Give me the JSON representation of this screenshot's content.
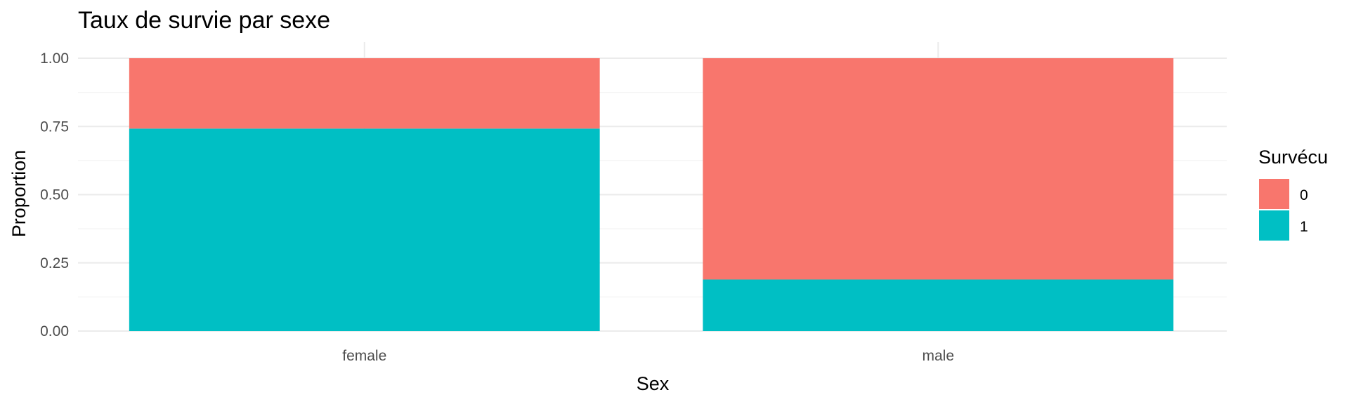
{
  "chart_data": {
    "type": "bar",
    "stacked": true,
    "title": "Taux de survie par sexe",
    "xlabel": "Sex",
    "ylabel": "Proportion",
    "categories": [
      "female",
      "male"
    ],
    "series": [
      {
        "name": "0",
        "values": [
          0.258,
          0.811
        ],
        "color": "#F8766D"
      },
      {
        "name": "1",
        "values": [
          0.742,
          0.189
        ],
        "color": "#00BFC4"
      }
    ],
    "ylim": [
      0,
      1
    ],
    "yticks": [
      "0.00",
      "0.25",
      "0.50",
      "0.75",
      "1.00"
    ],
    "ytick_values": [
      0,
      0.25,
      0.5,
      0.75,
      1.0
    ],
    "grid": true,
    "legend": {
      "title": "Survécu",
      "position": "right"
    }
  }
}
